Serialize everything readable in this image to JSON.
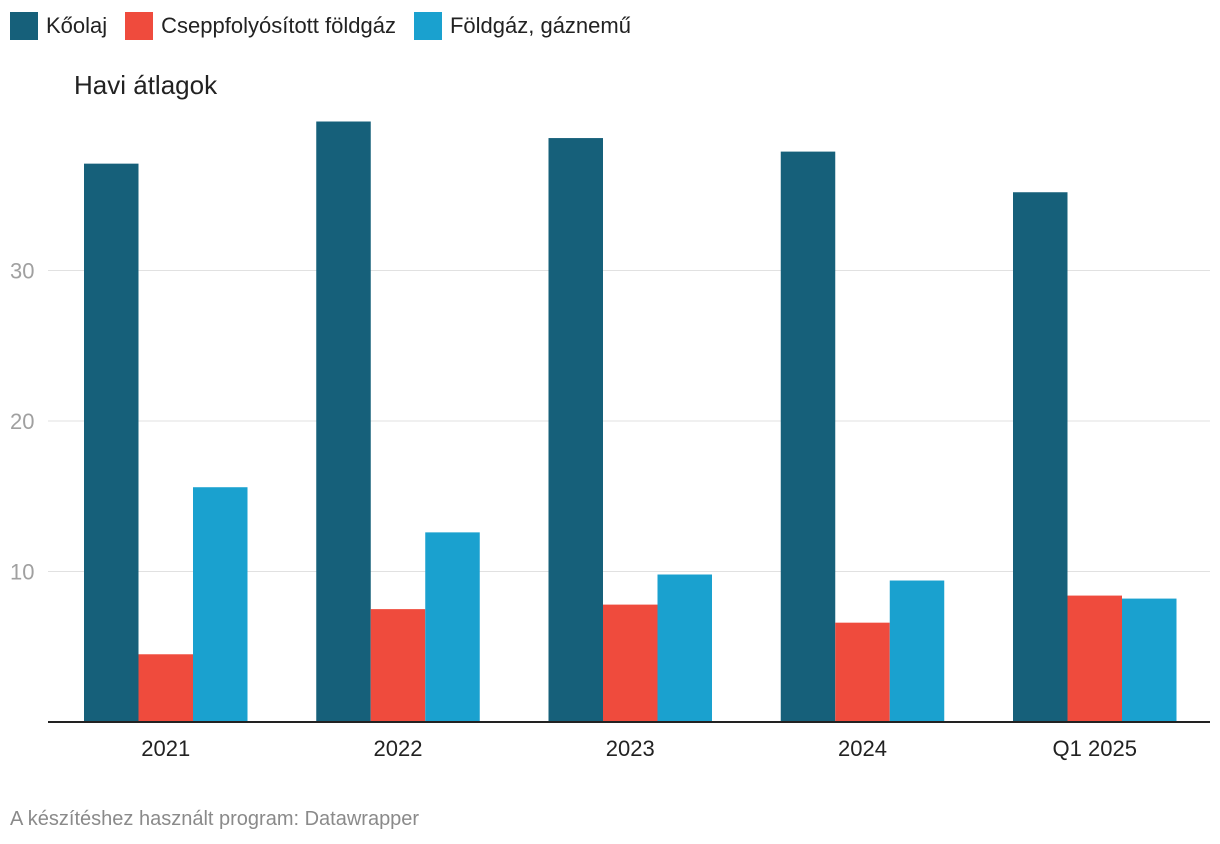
{
  "chart_data": {
    "type": "bar",
    "subtitle": "Havi átlagok",
    "categories": [
      "2021",
      "2022",
      "2023",
      "2024",
      "Q1 2025"
    ],
    "series": [
      {
        "name": "Kőolaj",
        "color": "#16607a",
        "values": [
          37.1,
          39.9,
          38.8,
          37.9,
          35.2
        ]
      },
      {
        "name": "Cseppfolyósított földgáz",
        "color": "#ef4b3d",
        "values": [
          4.5,
          7.5,
          7.8,
          6.6,
          8.4
        ]
      },
      {
        "name": "Földgáz, gáznemű",
        "color": "#1aa1cf",
        "values": [
          15.6,
          12.6,
          9.8,
          9.4,
          8.2
        ]
      }
    ],
    "yticks": [
      10,
      20,
      30
    ],
    "ylim": [
      0,
      42
    ],
    "grid": true,
    "legend_position": "top-left"
  },
  "footer": "A készítéshez használt program: Datawrapper"
}
